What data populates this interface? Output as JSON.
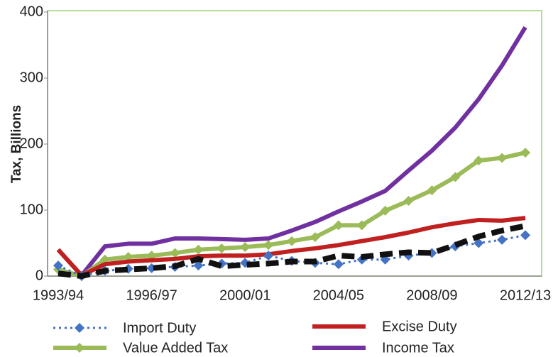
{
  "chart_data": {
    "type": "line",
    "y_label": "Tax, Billions",
    "categories": [
      "1993/94",
      null,
      null,
      null,
      "1996/97",
      null,
      null,
      null,
      "2000/01",
      null,
      null,
      null,
      "2004/05",
      null,
      null,
      null,
      "2008/09",
      null,
      null,
      null,
      "2012/13"
    ],
    "ylim": [
      0,
      400
    ],
    "yticks": [
      0,
      100,
      200,
      300,
      400
    ],
    "series": [
      {
        "name": "Income Tax",
        "color": "#7030a0",
        "style": "solid",
        "values": [
          40,
          1,
          45,
          49,
          49,
          57,
          57,
          56,
          55,
          57,
          69,
          82,
          98,
          113,
          129,
          160,
          190,
          225,
          268,
          319,
          377
        ]
      },
      {
        "name": "Value Added Tax",
        "color": "#9bbb59",
        "style": "solid",
        "marker": "diamond",
        "values": [
          10,
          0,
          25,
          29,
          31,
          35,
          40,
          42,
          44,
          47,
          53,
          59,
          77,
          77,
          99,
          114,
          130,
          150,
          175,
          179,
          187
        ]
      },
      {
        "name": "Excise Duty",
        "color": "#c0201f",
        "style": "solid",
        "values": [
          40,
          1,
          18,
          22,
          24,
          26,
          30,
          31,
          31,
          33,
          38,
          42,
          47,
          53,
          59,
          66,
          74,
          80,
          85,
          84,
          88
        ]
      },
      {
        "name": "Import Duty",
        "color": "#4472c4",
        "style": "dotted",
        "marker": "diamond",
        "values": [
          16,
          0,
          8,
          11,
          12,
          14,
          16,
          19,
          20,
          31,
          23,
          20,
          18,
          25,
          25,
          31,
          35,
          45,
          50,
          55,
          62
        ]
      },
      {
        "color": "#111111",
        "style": "dashed",
        "values": [
          4,
          0,
          8,
          10,
          12,
          15,
          26,
          15,
          17,
          19,
          22,
          22,
          31,
          29,
          33,
          36,
          35,
          47,
          60,
          69,
          76
        ]
      }
    ]
  }
}
